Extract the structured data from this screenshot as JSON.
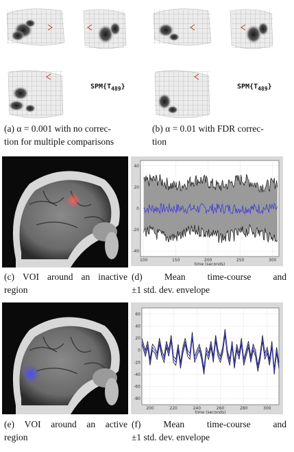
{
  "captions": {
    "a": {
      "line1": "(a) α = 0.001 with no correc-",
      "line2": "tion for multiple comparisons"
    },
    "b": {
      "line1": "(b) α = 0.01 with FDR correc-",
      "line2": "tion"
    },
    "c": {
      "w1": "(c)",
      "w2": "VOI",
      "w3": "around",
      "w4": "an",
      "w5": "inactive",
      "line2": "region"
    },
    "d": {
      "w1": "(d)",
      "w2": "Mean",
      "w3": "time-course",
      "w4": "and",
      "line2": "±1 std. dev. envelope"
    },
    "e": {
      "w1": "(e)",
      "w2": "VOI",
      "w3": "around",
      "w4": "an",
      "w5": "active",
      "line2": "region"
    },
    "f": {
      "w1": "(f)",
      "w2": "Mean",
      "w3": "time-course",
      "w4": "and",
      "line2": "±1 std. dev. envelope"
    }
  },
  "spm": {
    "a": {
      "label": "SPM{T",
      "sub": "489",
      "close": "}"
    },
    "b": {
      "label": "SPM{T",
      "sub": "489",
      "close": "}"
    }
  },
  "chart_data": [
    {
      "type": "line",
      "panel": "d",
      "xlabel": "time (seconds)",
      "xlim": [
        95,
        310
      ],
      "ylim": [
        -45,
        45
      ],
      "xticks": [
        100,
        150,
        200,
        250,
        300
      ],
      "yticks": [
        40,
        20,
        0,
        -20,
        -40
      ],
      "series": [
        {
          "role": "mean",
          "color": "#3a3ad8",
          "approx_level": 0
        },
        {
          "role": "upper-envelope",
          "approx_level": 20
        },
        {
          "role": "lower-envelope",
          "approx_level": -20
        }
      ]
    },
    {
      "type": "line",
      "panel": "f",
      "xlabel": "time (seconds)",
      "xlim": [
        193,
        310
      ],
      "ylim": [
        -90,
        70
      ],
      "xticks": [
        200,
        220,
        240,
        260,
        280,
        300
      ],
      "yticks": [
        60,
        40,
        20,
        0,
        -20,
        -40,
        -60,
        -80
      ],
      "x": [
        193,
        196,
        198,
        200,
        202,
        204,
        206,
        208,
        210,
        212,
        214,
        216,
        218,
        220,
        222,
        224,
        226,
        228,
        230,
        232,
        234,
        236,
        238,
        240,
        242,
        244,
        246,
        248,
        250,
        252,
        254,
        256,
        258,
        260,
        262,
        264,
        266,
        268,
        270,
        272,
        274,
        276,
        278,
        280,
        282,
        284,
        286,
        288,
        290,
        292,
        294,
        296,
        298,
        300,
        302,
        304,
        306,
        308,
        310
      ],
      "series": [
        {
          "role": "mean",
          "color": "#3a3ad8",
          "values": [
            15,
            -5,
            10,
            -20,
            5,
            0,
            -10,
            15,
            -5,
            -15,
            10,
            -5,
            20,
            -15,
            -20,
            5,
            -25,
            0,
            15,
            -5,
            -10,
            25,
            -15,
            -5,
            5,
            -10,
            -35,
            0,
            -10,
            10,
            -15,
            20,
            -5,
            -15,
            0,
            30,
            -5,
            -20,
            10,
            -25,
            5,
            -10,
            15,
            -20,
            -5,
            10,
            -15,
            5,
            -5,
            -30,
            -10,
            20,
            -10,
            0,
            -20,
            10,
            -35,
            0,
            -25
          ]
        }
      ]
    }
  ]
}
